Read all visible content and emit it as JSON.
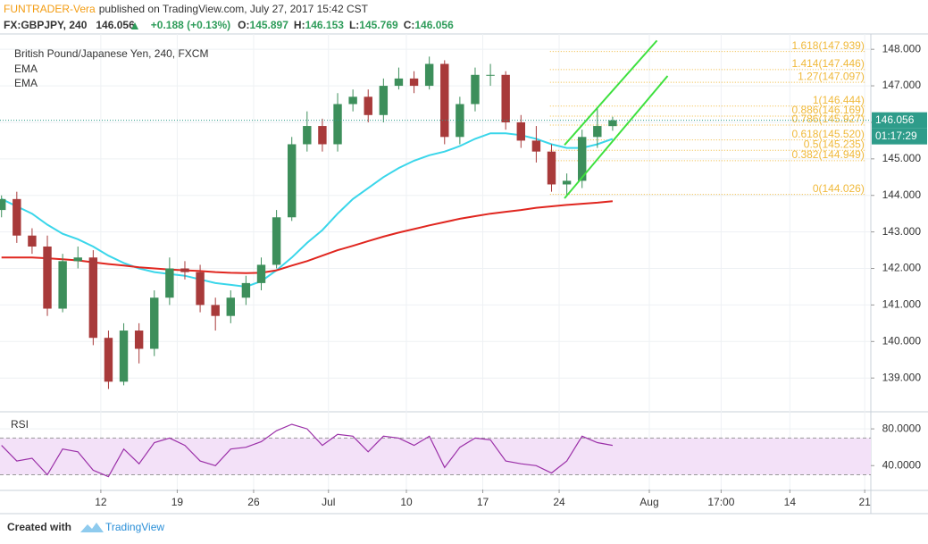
{
  "header": {
    "author": "FUNTRADER-Vera",
    "published": "published on TradingView.com, July 27, 2017 15:42 CST",
    "symbol": "FX:GBPJPY, 240",
    "price": "146.056",
    "change": "+0.188 (+0.13%)",
    "ohlc": [
      {
        "label": "O:",
        "value": "145.897"
      },
      {
        "label": "H:",
        "value": "146.153"
      },
      {
        "label": "L:",
        "value": "145.769"
      },
      {
        "label": "C:",
        "value": "146.056"
      }
    ]
  },
  "chart_data": [
    {
      "type": "candlestick",
      "title": "British Pound/Japanese Yen, 240, FXCM",
      "x": [
        -6.5,
        -5.5,
        -4.5,
        -3.5,
        -2.5,
        -1.5,
        -0.5,
        0.5,
        1.5,
        2.5,
        3.5,
        4.5,
        5.5,
        6.5,
        7.5,
        8.5,
        9.5,
        10.5,
        11.5,
        12.5,
        13.5,
        14.5,
        15.5,
        16.5,
        17.5,
        18.5,
        19.5,
        20.5,
        21.5,
        22.5,
        23.5,
        24.5,
        25.5,
        26.5,
        27.5,
        28.5,
        29.5,
        30.5,
        31.5,
        32.5,
        33.5
      ],
      "open": [
        143.6,
        143.9,
        142.9,
        142.6,
        140.9,
        142.2,
        142.3,
        140.1,
        138.9,
        140.3,
        139.8,
        141.2,
        142.0,
        141.9,
        141.0,
        140.7,
        141.2,
        141.6,
        142.1,
        143.4,
        145.4,
        145.9,
        145.4,
        146.5,
        146.7,
        146.2,
        147.0,
        147.2,
        147.0,
        147.6,
        145.6,
        146.5,
        147.3,
        147.3,
        146.0,
        145.5,
        145.2,
        144.3,
        144.4,
        145.6,
        145.897
      ],
      "high": [
        144.0,
        144.1,
        143.1,
        142.9,
        142.4,
        142.6,
        142.5,
        140.3,
        140.5,
        140.5,
        141.4,
        142.3,
        142.2,
        142.1,
        141.2,
        141.4,
        141.8,
        142.3,
        143.6,
        145.6,
        146.3,
        146.1,
        146.8,
        146.9,
        146.9,
        147.2,
        147.5,
        147.4,
        147.8,
        147.7,
        146.7,
        147.5,
        147.6,
        147.4,
        146.2,
        145.9,
        145.4,
        144.6,
        145.8,
        146.4,
        146.153
      ],
      "low": [
        143.4,
        142.7,
        142.4,
        140.7,
        140.8,
        142.0,
        139.9,
        138.7,
        138.8,
        139.4,
        139.6,
        141.0,
        141.7,
        140.8,
        140.3,
        140.5,
        141.0,
        141.4,
        142.0,
        143.3,
        145.2,
        145.2,
        145.2,
        146.3,
        146.0,
        146.0,
        146.9,
        146.8,
        146.9,
        145.4,
        145.4,
        146.3,
        147.0,
        145.8,
        145.3,
        144.9,
        144.1,
        144.0,
        144.2,
        145.3,
        145.769
      ],
      "close": [
        143.9,
        142.9,
        142.6,
        140.9,
        142.2,
        142.3,
        140.1,
        138.9,
        140.3,
        139.8,
        141.2,
        142.0,
        141.9,
        141.0,
        140.7,
        141.2,
        141.6,
        142.1,
        143.4,
        145.4,
        145.9,
        145.4,
        146.5,
        146.7,
        146.2,
        147.0,
        147.2,
        147.0,
        147.6,
        145.6,
        146.5,
        147.3,
        147.3,
        146.0,
        145.5,
        145.2,
        144.3,
        144.4,
        145.6,
        145.9,
        146.056
      ],
      "up_color": "#3d8f5b",
      "down_color": "#a83a3a",
      "series": [
        {
          "name": "EMA",
          "color": "#3ad6ea",
          "values": [
            143.9,
            143.7,
            143.5,
            143.2,
            142.95,
            142.8,
            142.6,
            142.35,
            142.15,
            142.0,
            141.9,
            141.85,
            141.8,
            141.7,
            141.6,
            141.55,
            141.5,
            141.65,
            141.95,
            142.3,
            142.7,
            143.05,
            143.5,
            143.9,
            144.2,
            144.5,
            144.75,
            144.95,
            145.1,
            145.2,
            145.35,
            145.55,
            145.7,
            145.7,
            145.65,
            145.55,
            145.4,
            145.3,
            145.3,
            145.4,
            145.55
          ]
        },
        {
          "name": "EMA",
          "color": "#e0261f",
          "values": [
            142.3,
            142.3,
            142.3,
            142.28,
            142.25,
            142.22,
            142.17,
            142.12,
            142.08,
            142.03,
            142.0,
            141.97,
            141.95,
            141.93,
            141.9,
            141.88,
            141.87,
            141.88,
            141.95,
            142.08,
            142.2,
            142.35,
            142.5,
            142.62,
            142.75,
            142.87,
            142.98,
            143.08,
            143.18,
            143.27,
            143.36,
            143.43,
            143.5,
            143.55,
            143.6,
            143.66,
            143.7,
            143.74,
            143.77,
            143.8,
            143.84
          ]
        }
      ],
      "fib": {
        "color": "#f0b93a",
        "x_range": [
          29.4,
          50.1
        ],
        "levels": [
          {
            "label": "1.618(147.939)",
            "value": 147.939
          },
          {
            "label": "1.414(147.446)",
            "value": 147.446
          },
          {
            "label": "1.27(147.097)",
            "value": 147.097
          },
          {
            "label": "1(146.444)",
            "value": 146.444
          },
          {
            "label": "0.886(146.169)",
            "value": 146.169
          },
          {
            "label": "0.786(145.927)",
            "value": 145.927
          },
          {
            "label": "0.618(145.520)",
            "value": 145.52
          },
          {
            "label": "0.5(145.235)",
            "value": 145.235
          },
          {
            "label": "0.382(144.949)",
            "value": 144.949
          },
          {
            "label": "0(144.026)",
            "value": 144.026
          }
        ]
      },
      "channel": {
        "color": "#3ee03e",
        "lines": [
          {
            "x": [
              30.35,
              36.4
            ],
            "y": [
              145.38,
              148.24
            ]
          },
          {
            "x": [
              30.35,
              37.1
            ],
            "y": [
              143.92,
              147.27
            ]
          }
        ]
      },
      "countdown": "01:17:29",
      "xlim": [
        -6.6,
        50.4
      ],
      "xticks": [
        {
          "value": 0,
          "label": "12"
        },
        {
          "value": 5,
          "label": "19"
        },
        {
          "value": 10,
          "label": "26"
        },
        {
          "value": 14.9,
          "label": "Jul"
        },
        {
          "value": 20,
          "label": "10"
        },
        {
          "value": 25,
          "label": "17"
        },
        {
          "value": 30,
          "label": "24"
        },
        {
          "value": 35.9,
          "label": "Aug"
        },
        {
          "value": 40.6,
          "label": "17:00"
        },
        {
          "value": 45.1,
          "label": "14"
        },
        {
          "value": 50,
          "label": "21"
        }
      ],
      "ylim": [
        138.1,
        148.42
      ],
      "yticks": [
        {
          "value": 139,
          "label": "139.000"
        },
        {
          "value": 140,
          "label": "140.000"
        },
        {
          "value": 141,
          "label": "141.000"
        },
        {
          "value": 142,
          "label": "142.000"
        },
        {
          "value": 143,
          "label": "143.000"
        },
        {
          "value": 144,
          "label": "144.000"
        },
        {
          "value": 145,
          "label": "145.000"
        },
        {
          "value": 146,
          "label": "146.000"
        },
        {
          "value": 147,
          "label": "147.000"
        },
        {
          "value": 148,
          "label": "148.000"
        }
      ],
      "grid": true
    },
    {
      "type": "line",
      "title": "RSI",
      "color": "#9b30a8",
      "band_fill": "#f3e1f8",
      "bands": [
        30,
        70
      ],
      "x": [
        -6.5,
        -5.5,
        -4.5,
        -3.5,
        -2.5,
        -1.5,
        -0.5,
        0.5,
        1.5,
        2.5,
        3.5,
        4.5,
        5.5,
        6.5,
        7.5,
        8.5,
        9.5,
        10.5,
        11.5,
        12.5,
        13.5,
        14.5,
        15.5,
        16.5,
        17.5,
        18.5,
        19.5,
        20.5,
        21.5,
        22.5,
        23.5,
        24.5,
        25.5,
        26.5,
        27.5,
        28.5,
        29.5,
        30.5,
        31.5,
        32.5,
        33.5
      ],
      "values": [
        62,
        45,
        48,
        30,
        58,
        55,
        35,
        28,
        58,
        42,
        65,
        70,
        62,
        45,
        40,
        58,
        60,
        66,
        78,
        85,
        80,
        62,
        74,
        72,
        55,
        72,
        70,
        62,
        72,
        38,
        60,
        70,
        68,
        45,
        42,
        40,
        32,
        45,
        72,
        65,
        62
      ],
      "xlim": [
        -6.6,
        50.4
      ],
      "ylim": [
        14,
        97.6
      ],
      "yticks": [
        {
          "value": 40,
          "label": "40.0000"
        },
        {
          "value": 80,
          "label": "80.0000"
        }
      ],
      "grid": true
    }
  ],
  "footer": {
    "created": "Created with",
    "brand": "TradingView"
  }
}
